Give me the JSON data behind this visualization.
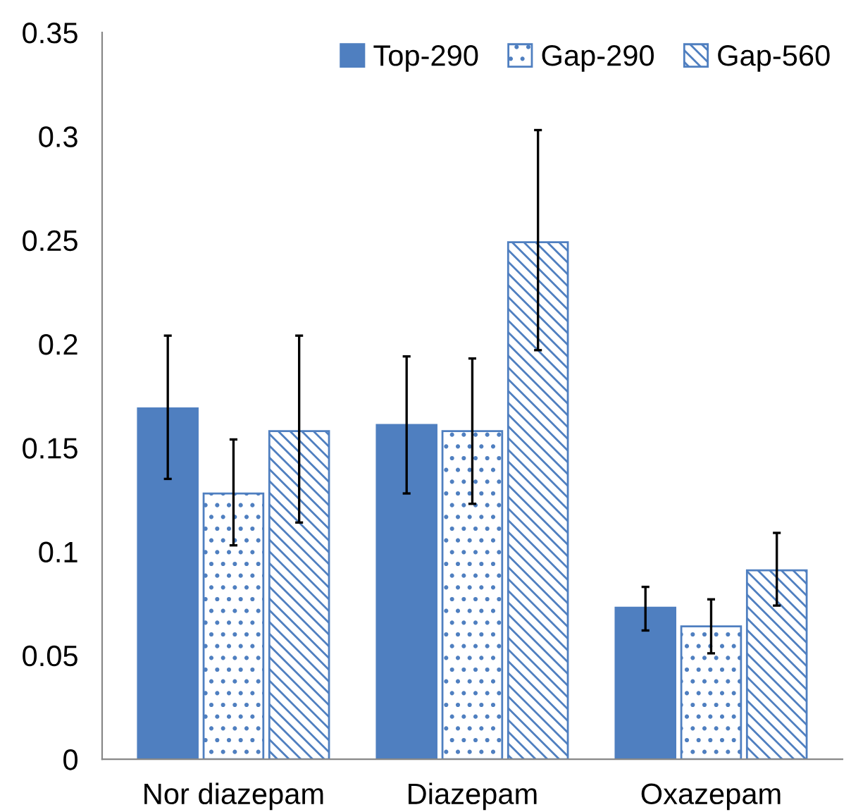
{
  "chart_data": {
    "type": "bar",
    "categories": [
      "Nor diazepam",
      "Diazepam",
      "Oxazepam"
    ],
    "series": [
      {
        "name": "Top-290",
        "color": "#4f7fc0",
        "values": [
          0.169,
          0.161,
          0.073
        ],
        "errors": [
          [
            0.135,
            0.204
          ],
          [
            0.128,
            0.194
          ],
          [
            0.062,
            0.083
          ]
        ]
      },
      {
        "name": "Gap-290",
        "color": "#4f7fc0",
        "values": [
          0.128,
          0.158,
          0.064
        ],
        "errors": [
          [
            0.103,
            0.154
          ],
          [
            0.123,
            0.193
          ],
          [
            0.051,
            0.077
          ]
        ]
      },
      {
        "name": "Gap-560",
        "color": "#4f7fc0",
        "values": [
          0.158,
          0.249,
          0.091
        ],
        "errors": [
          [
            0.114,
            0.204
          ],
          [
            0.197,
            0.303
          ],
          [
            0.074,
            0.109
          ]
        ]
      }
    ],
    "ylim": [
      0,
      0.35
    ],
    "yticks": [
      0,
      0.05,
      0.1,
      0.15,
      0.2,
      0.25,
      0.3,
      0.35
    ],
    "grid": false,
    "legend": "top right"
  }
}
